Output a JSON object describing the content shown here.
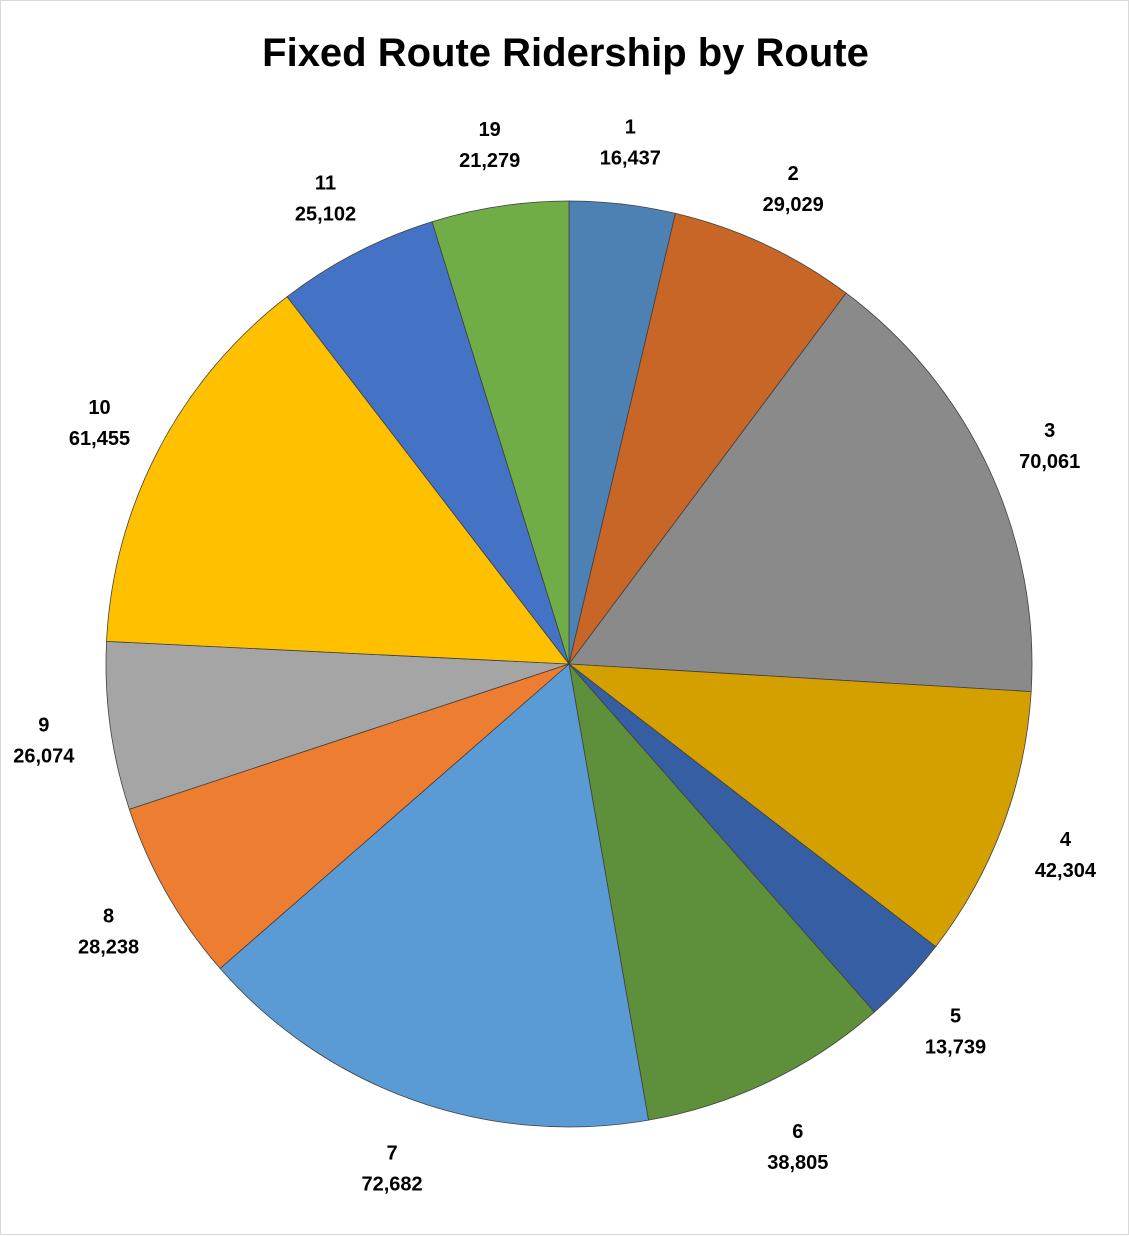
{
  "chart_data": {
    "type": "pie",
    "title": "Fixed Route Ridership by Route",
    "start_angle_deg": 0,
    "direction": "clockwise",
    "legend": "none",
    "data_labels": "category and value, outside end",
    "slices": [
      {
        "label": "1",
        "value": 16437,
        "value_label": "16,437",
        "color": "#4e81b3"
      },
      {
        "label": "2",
        "value": 29029,
        "value_label": "29,029",
        "color": "#c76627"
      },
      {
        "label": "3",
        "value": 70061,
        "value_label": "70,061",
        "color": "#8a8a8a"
      },
      {
        "label": "4",
        "value": 42304,
        "value_label": "42,304",
        "color": "#d4a000"
      },
      {
        "label": "5",
        "value": 13739,
        "value_label": "13,739",
        "color": "#365fa3"
      },
      {
        "label": "6",
        "value": 38805,
        "value_label": "38,805",
        "color": "#5e8f3a"
      },
      {
        "label": "7",
        "value": 72682,
        "value_label": "72,682",
        "color": "#5b9bd5"
      },
      {
        "label": "8",
        "value": 28238,
        "value_label": "28,238",
        "color": "#ed7d31"
      },
      {
        "label": "9",
        "value": 26074,
        "value_label": "26,074",
        "color": "#a5a5a5"
      },
      {
        "label": "10",
        "value": 61455,
        "value_label": "61,455",
        "color": "#ffc000"
      },
      {
        "label": "11",
        "value": 25102,
        "value_label": "25,102",
        "color": "#4472c4"
      },
      {
        "label": "19",
        "value": 21279,
        "value_label": "21,279",
        "color": "#70ad47"
      }
    ]
  }
}
